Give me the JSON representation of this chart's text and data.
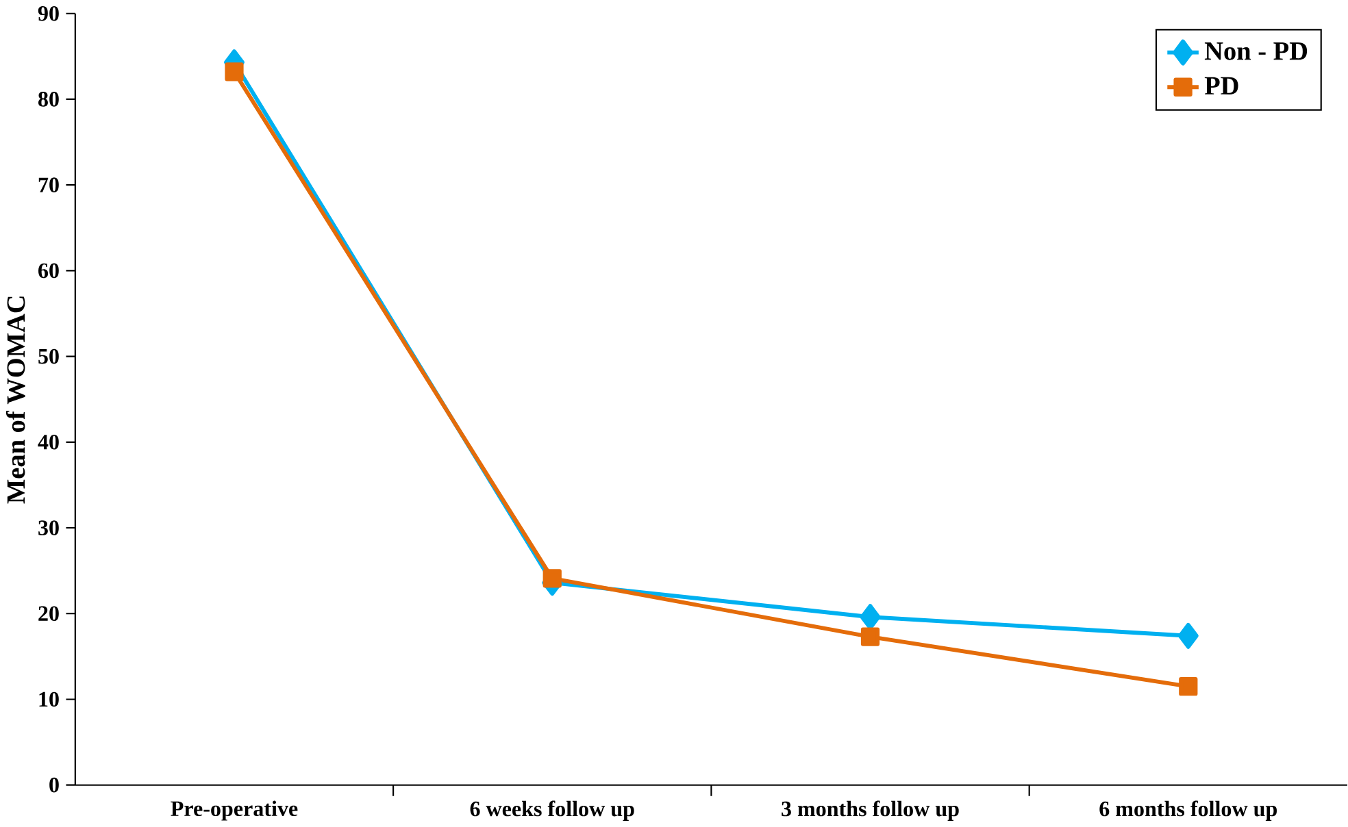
{
  "chart_data": {
    "type": "line",
    "ylabel": "Mean of WOMAC",
    "categories": [
      "Pre-operative",
      "6 weeks follow up",
      "3 months follow up",
      "6 months follow up"
    ],
    "series": [
      {
        "name": "Non - PD",
        "color": "#00b0f0",
        "marker": "diamond",
        "values": [
          84.3,
          23.6,
          19.6,
          17.4
        ]
      },
      {
        "name": "PD",
        "color": "#e46c0a",
        "marker": "square",
        "values": [
          83.2,
          24.1,
          17.3,
          11.5
        ]
      }
    ],
    "ylim": [
      0,
      90
    ],
    "yticks": [
      0,
      10,
      20,
      30,
      40,
      50,
      60,
      70,
      80,
      90
    ],
    "legend": "top right",
    "grid": false,
    "line_style": "solid"
  }
}
